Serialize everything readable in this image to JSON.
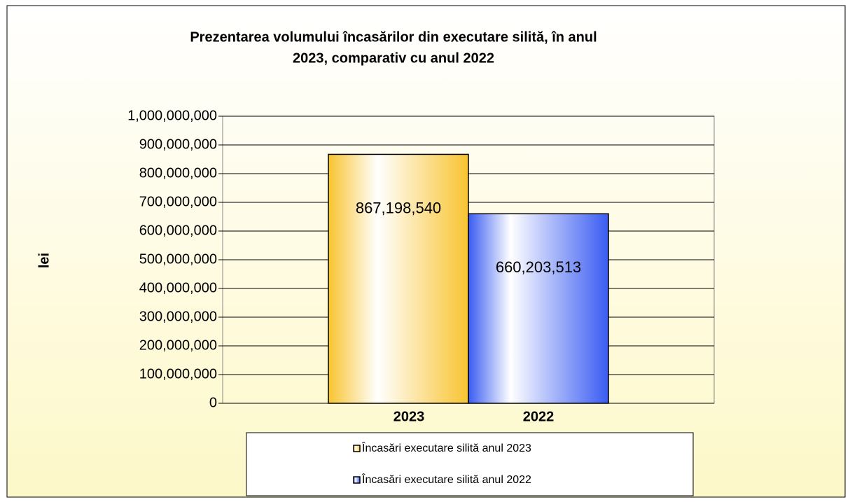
{
  "chart_data": {
    "type": "bar",
    "title": [
      "Prezentarea volumului încasărilor din executare silită, în anul",
      "2023, comparativ cu anul 2022"
    ],
    "y_label": "lei",
    "categories": [
      "2023",
      "2022"
    ],
    "series": [
      {
        "name": "Încasări executare silită anul 2023",
        "color": "#f8c430",
        "values": [
          867198540,
          null
        ],
        "value_labels": [
          "867,198,540",
          null
        ]
      },
      {
        "name": "Încasări executare silită anul 2022",
        "color": "#3a5cf2",
        "values": [
          null,
          660203513
        ],
        "value_labels": [
          null,
          "660,203,513"
        ]
      }
    ],
    "ylim": [
      0,
      1000000000
    ],
    "yticks": [
      0,
      {
        "value": 100000000,
        "label": "100,000,000"
      },
      {
        "value": 200000000,
        "label": "200,000,000"
      },
      {
        "value": 300000000,
        "label": "300,000,000"
      },
      {
        "value": 400000000,
        "label": "400,000,000"
      },
      {
        "value": 500000000,
        "label": "500,000,000"
      },
      {
        "value": 600000000,
        "label": "600,000,000"
      },
      {
        "value": 700000000,
        "label": "700,000,000"
      },
      {
        "value": 800000000,
        "label": "800,000,000"
      },
      {
        "value": 900000000,
        "label": "900,000,000"
      },
      {
        "value": 1000000000,
        "label": "1,000,000,000"
      }
    ],
    "grid": true,
    "legend": "bottom"
  }
}
